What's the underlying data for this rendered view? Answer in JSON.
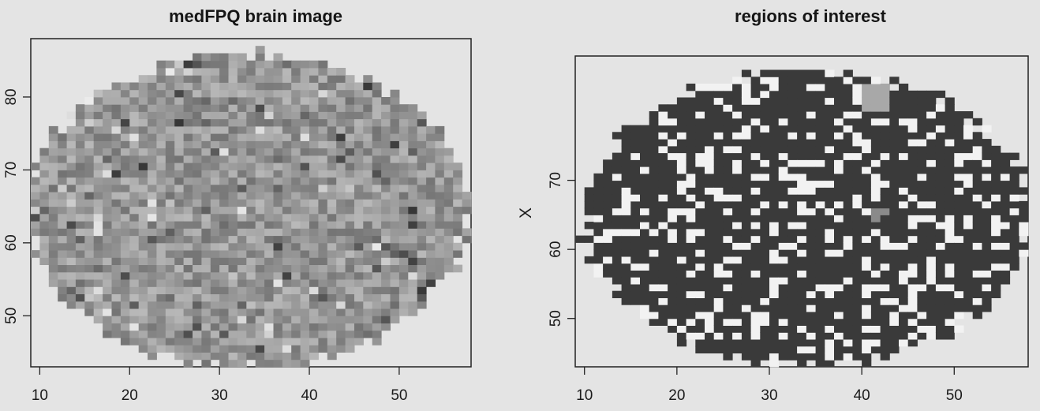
{
  "colors": {
    "paper": "#e4e4e4",
    "frame": "#222222",
    "roi_dark": "#3a3a3a",
    "roi_light": "#f2f2f2",
    "roi_mid": "#a8a8a8",
    "roi_mid2": "#8a8a8a"
  },
  "chart_data": [
    {
      "type": "heatmap",
      "title": "medFPQ brain image",
      "xlabel": "",
      "ylabel": "",
      "xlim": [
        9,
        58
      ],
      "ylim": [
        43,
        88
      ],
      "xticks": [
        10,
        20,
        30,
        40,
        50
      ],
      "yticks": [
        50,
        60,
        70,
        80
      ],
      "grid": false,
      "legend": "none",
      "grid_x": [
        9,
        58
      ],
      "grid_y": [
        43,
        88
      ],
      "mask": {
        "cx": 33,
        "cy": 64.5,
        "rx": 24.5,
        "ry": 21.5
      },
      "value_scale": "grayscale (darker = lower medFPQ)"
    },
    {
      "type": "heatmap",
      "title": "regions of interest",
      "xlabel": "",
      "ylabel": "X",
      "xlim": [
        9,
        58
      ],
      "ylim": [
        43,
        88
      ],
      "xticks": [
        10,
        20,
        30,
        40,
        50
      ],
      "yticks": [
        50,
        60,
        70
      ],
      "grid": false,
      "legend": "none",
      "mask": {
        "cx": 34,
        "cy": 64.5,
        "rx": 24,
        "ry": 21.5
      },
      "categories": [
        "region (dark)",
        "background (white)",
        "region (light grey)"
      ]
    }
  ]
}
